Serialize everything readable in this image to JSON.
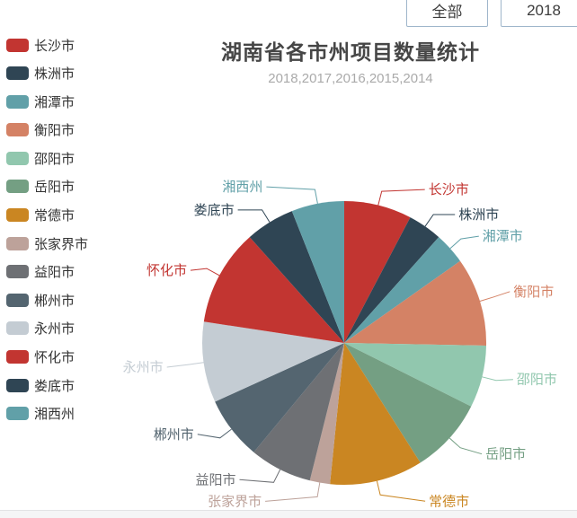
{
  "toolbar": {
    "all_button_label": "全部",
    "year_button_label": "2018"
  },
  "chart": {
    "title": "湖南省各市州项目数量统计",
    "subtitle": "2018,2017,2016,2015,2014"
  },
  "chart_data": {
    "type": "pie",
    "title": "湖南省各市州项目数量统计",
    "subtitle": "2018,2017,2016,2015,2014",
    "legend_position": "left",
    "label_layout": "outside-with-leader-lines",
    "start_angle_deg": 0,
    "direction": "clockwise",
    "categories": [
      "长沙市",
      "株洲市",
      "湘潭市",
      "衡阳市",
      "邵阳市",
      "岳阳市",
      "常德市",
      "张家界市",
      "益阳市",
      "郴州市",
      "永州市",
      "怀化市",
      "娄底市",
      "湘西州"
    ],
    "values_percent_estimated": [
      7.7,
      3.9,
      3.6,
      10.1,
      7.1,
      8.6,
      10.6,
      2.3,
      7.1,
      7.2,
      9.2,
      11.0,
      5.6,
      6.0
    ],
    "colors": [
      "#c23531",
      "#2f4554",
      "#61a0a8",
      "#d48265",
      "#91c7ae",
      "#749f83",
      "#ca8622",
      "#bda29a",
      "#6e7074",
      "#546570",
      "#c4ccd3",
      "#c23531",
      "#2f4554",
      "#61a0a8"
    ],
    "note": "No numeric labels are visible in the chart; values are percentage shares estimated from slice angles."
  }
}
